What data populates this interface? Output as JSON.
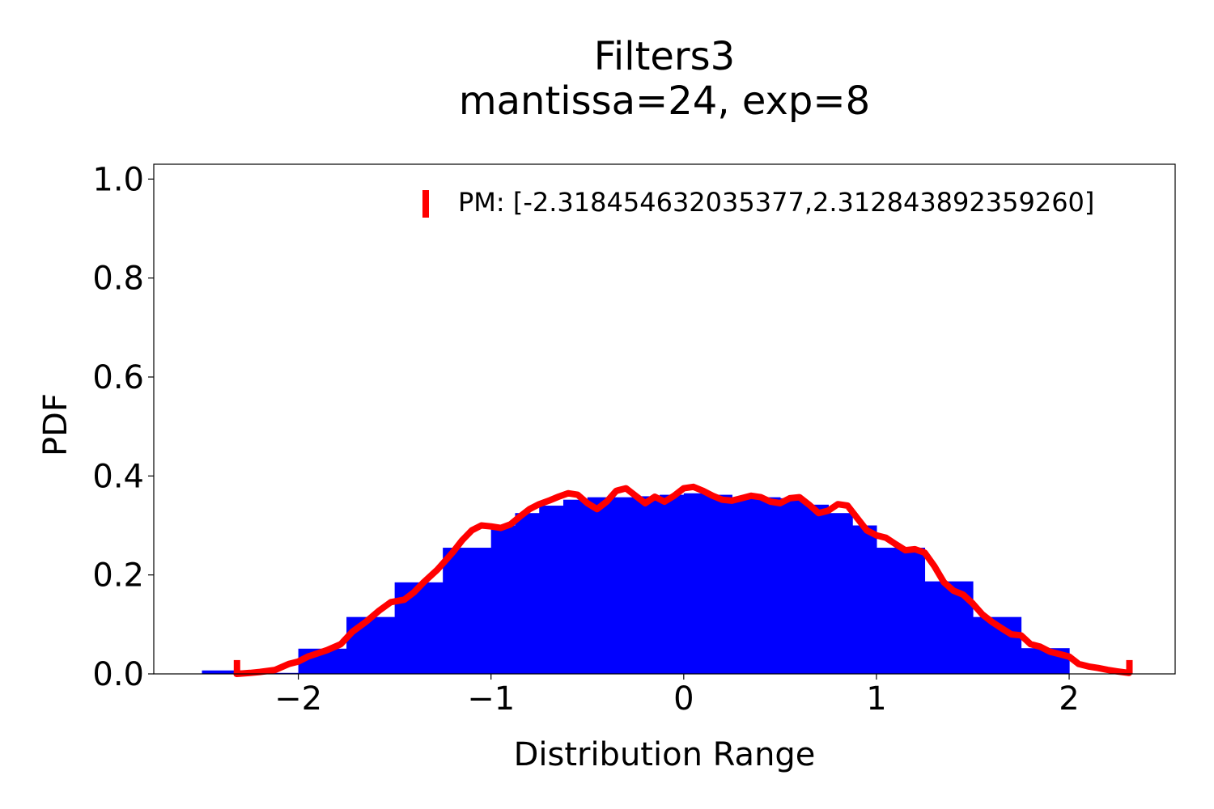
{
  "chart_data": {
    "type": "bar",
    "title": "Filters3",
    "subtitle": "mantissa=24, exp=8",
    "xlabel": "Distribution Range",
    "ylabel": "PDF",
    "xlim": [
      -2.75,
      2.55
    ],
    "ylim": [
      0,
      1.03
    ],
    "xticks": [
      -2,
      -1,
      0,
      1,
      2
    ],
    "xtick_labels": [
      "−2",
      "−1",
      "0",
      "1",
      "2"
    ],
    "yticks": [
      0.0,
      0.2,
      0.4,
      0.6,
      0.8,
      1.0
    ],
    "ytick_labels": [
      "0.0",
      "0.2",
      "0.4",
      "0.6",
      "0.8",
      "1.0"
    ],
    "grid": false,
    "legend_position": "top-right",
    "colors": {
      "bars": "#0000ff",
      "curve": "#ff0000",
      "markers": "#ff0000"
    },
    "histogram": {
      "name": "",
      "bins": [
        [
          -2.5,
          -2.25,
          0.007
        ],
        [
          -2.25,
          -2.0,
          0.002
        ],
        [
          -2.0,
          -1.75,
          0.051
        ],
        [
          -1.75,
          -1.5,
          0.115
        ],
        [
          -1.5,
          -1.25,
          0.185
        ],
        [
          -1.25,
          -1.0,
          0.255
        ],
        [
          -1.0,
          -0.875,
          0.3
        ],
        [
          -0.875,
          -0.75,
          0.325
        ],
        [
          -0.75,
          -0.625,
          0.34
        ],
        [
          -0.625,
          -0.5,
          0.352
        ],
        [
          -0.5,
          -0.25,
          0.357
        ],
        [
          -0.25,
          -0.125,
          0.359
        ],
        [
          -0.125,
          0.0,
          0.362
        ],
        [
          0.0,
          0.125,
          0.365
        ],
        [
          0.125,
          0.25,
          0.362
        ],
        [
          0.25,
          0.5,
          0.357
        ],
        [
          0.5,
          0.625,
          0.355
        ],
        [
          0.625,
          0.75,
          0.342
        ],
        [
          0.75,
          0.875,
          0.325
        ],
        [
          0.875,
          1.0,
          0.3
        ],
        [
          1.0,
          1.25,
          0.255
        ],
        [
          1.25,
          1.5,
          0.187
        ],
        [
          1.5,
          1.75,
          0.115
        ],
        [
          1.75,
          2.0,
          0.052
        ]
      ]
    },
    "series": [
      {
        "name": "",
        "type": "line",
        "x": [
          -2.32,
          -2.25,
          -2.2,
          -2.12,
          -2.05,
          -2.0,
          -1.95,
          -1.85,
          -1.78,
          -1.72,
          -1.65,
          -1.58,
          -1.52,
          -1.45,
          -1.4,
          -1.35,
          -1.28,
          -1.2,
          -1.15,
          -1.1,
          -1.05,
          -1.0,
          -0.95,
          -0.9,
          -0.85,
          -0.8,
          -0.75,
          -0.7,
          -0.65,
          -0.6,
          -0.55,
          -0.5,
          -0.45,
          -0.4,
          -0.35,
          -0.3,
          -0.25,
          -0.2,
          -0.15,
          -0.1,
          -0.05,
          0.0,
          0.05,
          0.1,
          0.15,
          0.2,
          0.25,
          0.3,
          0.35,
          0.4,
          0.45,
          0.5,
          0.55,
          0.6,
          0.65,
          0.7,
          0.75,
          0.8,
          0.85,
          0.9,
          0.95,
          1.0,
          1.05,
          1.1,
          1.15,
          1.2,
          1.25,
          1.3,
          1.35,
          1.4,
          1.45,
          1.5,
          1.55,
          1.6,
          1.65,
          1.7,
          1.75,
          1.8,
          1.85,
          1.9,
          1.95,
          2.0,
          2.05,
          2.1,
          2.15,
          2.2,
          2.25,
          2.31
        ],
        "y": [
          0.0,
          0.002,
          0.004,
          0.008,
          0.02,
          0.025,
          0.035,
          0.048,
          0.06,
          0.085,
          0.105,
          0.128,
          0.145,
          0.15,
          0.165,
          0.185,
          0.21,
          0.245,
          0.27,
          0.29,
          0.3,
          0.298,
          0.295,
          0.302,
          0.318,
          0.333,
          0.343,
          0.35,
          0.358,
          0.365,
          0.362,
          0.345,
          0.333,
          0.348,
          0.37,
          0.375,
          0.36,
          0.345,
          0.358,
          0.348,
          0.36,
          0.375,
          0.378,
          0.37,
          0.36,
          0.352,
          0.35,
          0.355,
          0.36,
          0.357,
          0.348,
          0.345,
          0.355,
          0.357,
          0.342,
          0.325,
          0.33,
          0.343,
          0.34,
          0.315,
          0.29,
          0.28,
          0.275,
          0.262,
          0.25,
          0.252,
          0.245,
          0.218,
          0.185,
          0.168,
          0.16,
          0.142,
          0.12,
          0.105,
          0.092,
          0.08,
          0.078,
          0.06,
          0.055,
          0.045,
          0.04,
          0.035,
          0.02,
          0.015,
          0.012,
          0.008,
          0.005,
          0.002
        ]
      }
    ],
    "markers": {
      "x": [
        -2.318454632035377,
        2.31284389235926
      ],
      "height": 0.028
    },
    "legend": [
      {
        "label": "PM: [-2.318454632035377,2.312843892359260]"
      }
    ]
  }
}
